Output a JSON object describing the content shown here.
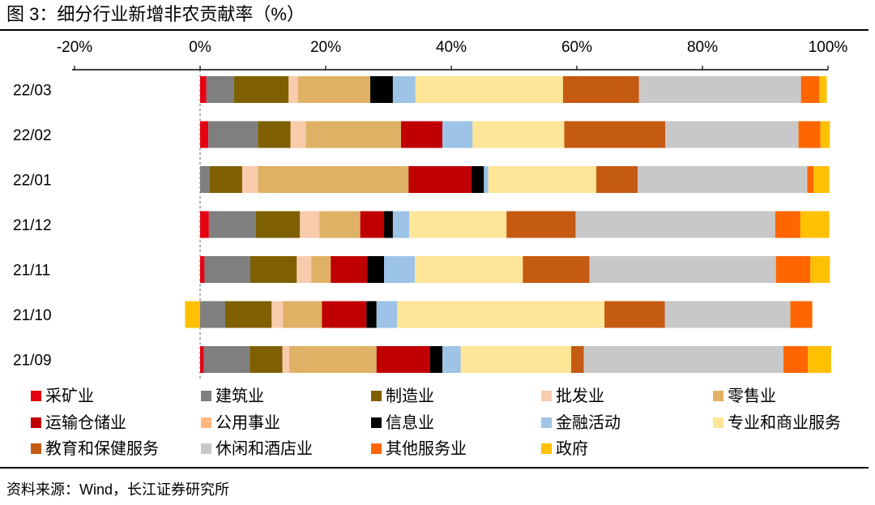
{
  "figure_title": "图 3：细分行业新增非农贡献率（%）",
  "source": "资料来源：Wind，长江证券研究所",
  "chart_data": {
    "type": "bar",
    "orientation": "horizontal",
    "stacked": true,
    "title": "细分行业新增非农贡献率（%）",
    "xlabel": "",
    "ylabel": "",
    "xlim": [
      -20,
      100
    ],
    "xticks": [
      "-20%",
      "0%",
      "20%",
      "40%",
      "60%",
      "80%",
      "100%"
    ],
    "categories": [
      "22/03",
      "22/02",
      "22/01",
      "21/12",
      "21/11",
      "21/10",
      "21/09"
    ],
    "legend_position": "bottom",
    "series": [
      {
        "name": "采矿业",
        "color": "#e60012",
        "values": [
          1,
          1.3,
          0,
          1.4,
          0.7,
          0,
          0.6
        ]
      },
      {
        "name": "建筑业",
        "color": "#7f7f7f",
        "values": [
          4.4,
          7.9,
          1.5,
          7.5,
          7.3,
          4,
          7.3
        ]
      },
      {
        "name": "制造业",
        "color": "#7f6000",
        "values": [
          8.7,
          5.2,
          5.2,
          7,
          7.4,
          7.4,
          5.2
        ]
      },
      {
        "name": "批发业",
        "color": "#f8cbad",
        "values": [
          1.5,
          2.4,
          2.5,
          3.1,
          2.3,
          1.8,
          1.1
        ]
      },
      {
        "name": "零售业",
        "color": "#dfb165",
        "values": [
          11.5,
          15.2,
          24,
          6.5,
          3.1,
          6.2,
          13.9
        ]
      },
      {
        "name": "运输仓储业",
        "color": "#c00000",
        "values": [
          0,
          6.6,
          10,
          3.8,
          5.8,
          7.1,
          8.5
        ]
      },
      {
        "name": "公用事业",
        "color": "#ffb97d",
        "values": [
          0,
          0,
          0,
          0,
          0,
          0,
          0
        ]
      },
      {
        "name": "信息业",
        "color": "#000000",
        "values": [
          3.6,
          0,
          2,
          1.4,
          2.7,
          1.6,
          2
        ]
      },
      {
        "name": "金融活动",
        "color": "#9dc3e6",
        "values": [
          3.6,
          4.8,
          0.7,
          2.6,
          4.9,
          3.3,
          2.9
        ]
      },
      {
        "name": "专业和商业服务",
        "color": "#ffe597",
        "values": [
          23.5,
          14.6,
          17.2,
          15.5,
          17.2,
          33,
          17.6
        ]
      },
      {
        "name": "教育和保健服务",
        "color": "#c55a11",
        "values": [
          12.1,
          16.1,
          6.6,
          11,
          10.6,
          9.6,
          2
        ]
      },
      {
        "name": "休闲和酒店业",
        "color": "#c8c8c8",
        "values": [
          25.8,
          21.2,
          27,
          31.8,
          29.7,
          20,
          31.8
        ]
      },
      {
        "name": "其他服务业",
        "color": "#ff6600",
        "values": [
          2.9,
          3.5,
          1,
          4,
          5.5,
          3.5,
          3.9
        ]
      },
      {
        "name": "政府",
        "color": "#ffc000",
        "values": [
          1.2,
          1.5,
          2.5,
          4.6,
          3.1,
          -2.4,
          3.7
        ]
      }
    ]
  }
}
